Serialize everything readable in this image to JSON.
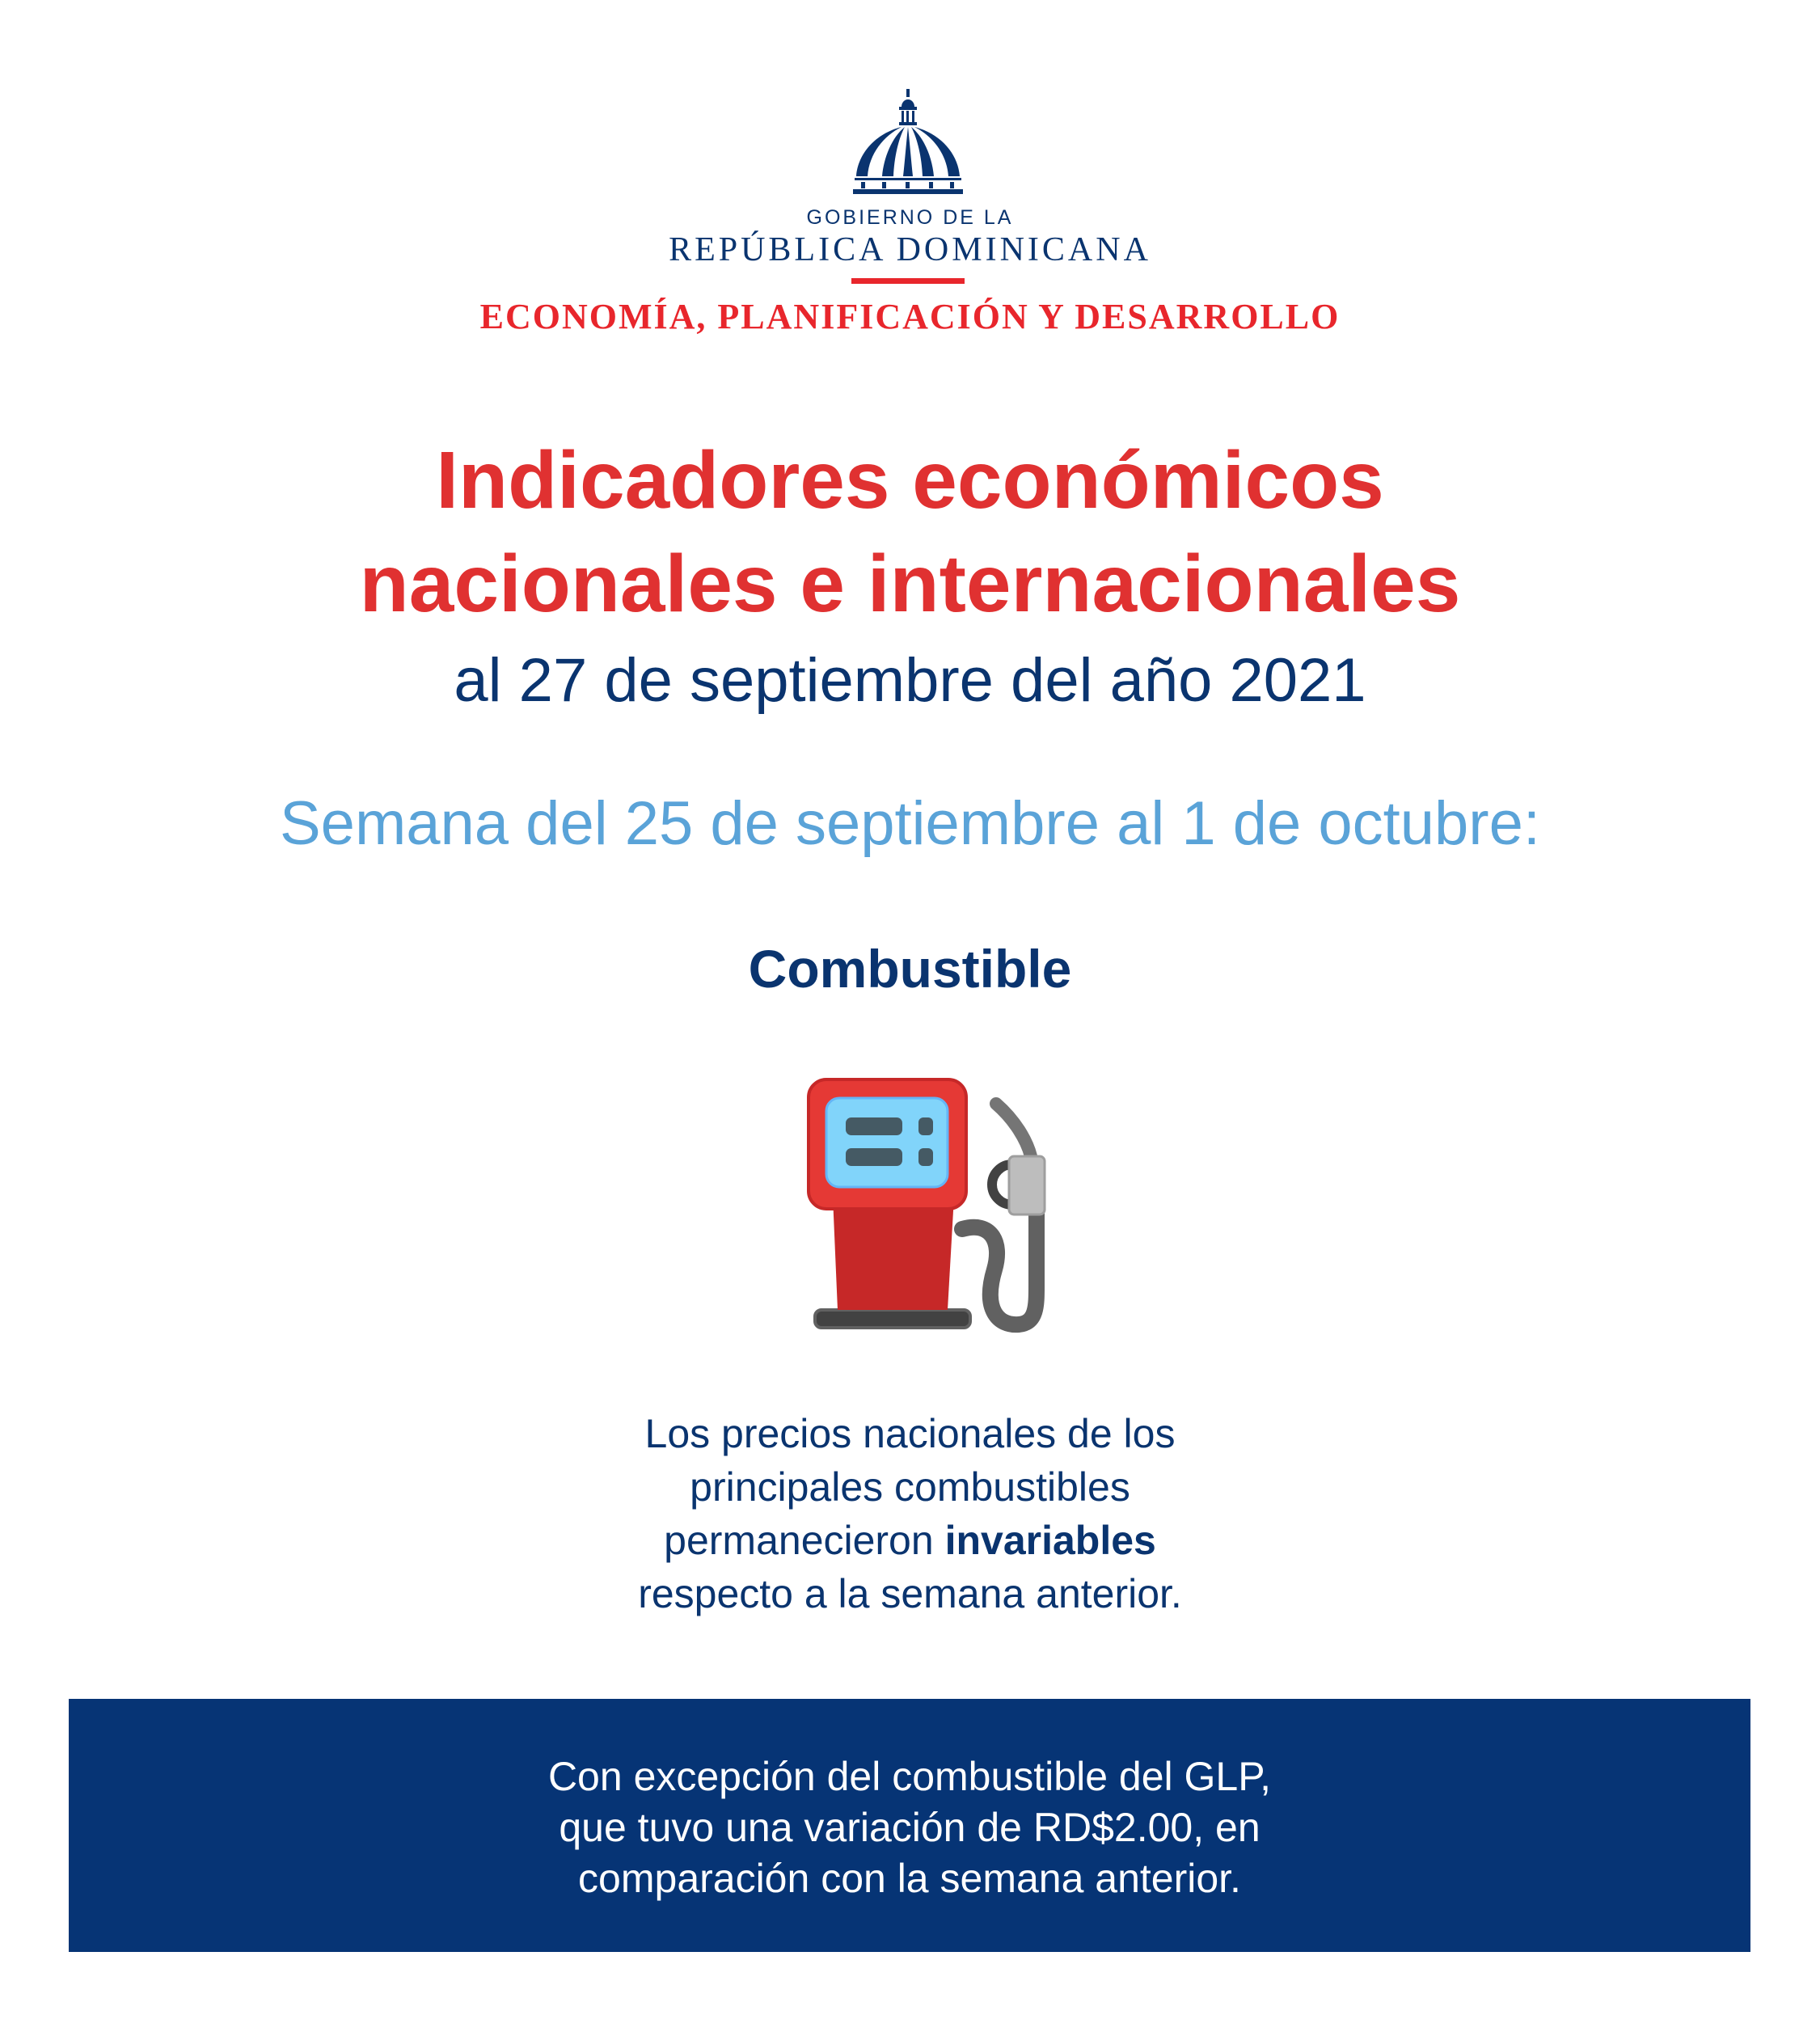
{
  "header": {
    "logo_icon": "capitol-dome-icon",
    "logo_line1": "GOBIERNO DE LA",
    "logo_line2": "REPÚBLICA DOMINICANA",
    "ministry": "ECONOMÍA, PLANIFICACIÓN Y DESARROLLO"
  },
  "title": {
    "line1": "Indicadores económicos",
    "line2": "nacionales e internacionales",
    "date": "al 27 de septiembre del año 2021"
  },
  "week": "Semana del 25 de septiembre al 1 de octubre:",
  "section": {
    "heading": "Combustible",
    "icon": "fuel-pump-icon",
    "paragraph": {
      "line1": "Los precios nacionales de los",
      "line2": "principales combustibles",
      "line3_pre": "permanecieron ",
      "line3_bold": "invariables",
      "line4": "respecto a la semana anterior."
    }
  },
  "note": {
    "line1": "Con excepción del combustible del GLP,",
    "line2": "que tuvo una variación de RD$2.00, en",
    "line3": "comparación con la semana anterior."
  },
  "colors": {
    "navy": "#0a346f",
    "red": "#e03131",
    "light_blue": "#5aa3d8",
    "box": "#063475"
  }
}
